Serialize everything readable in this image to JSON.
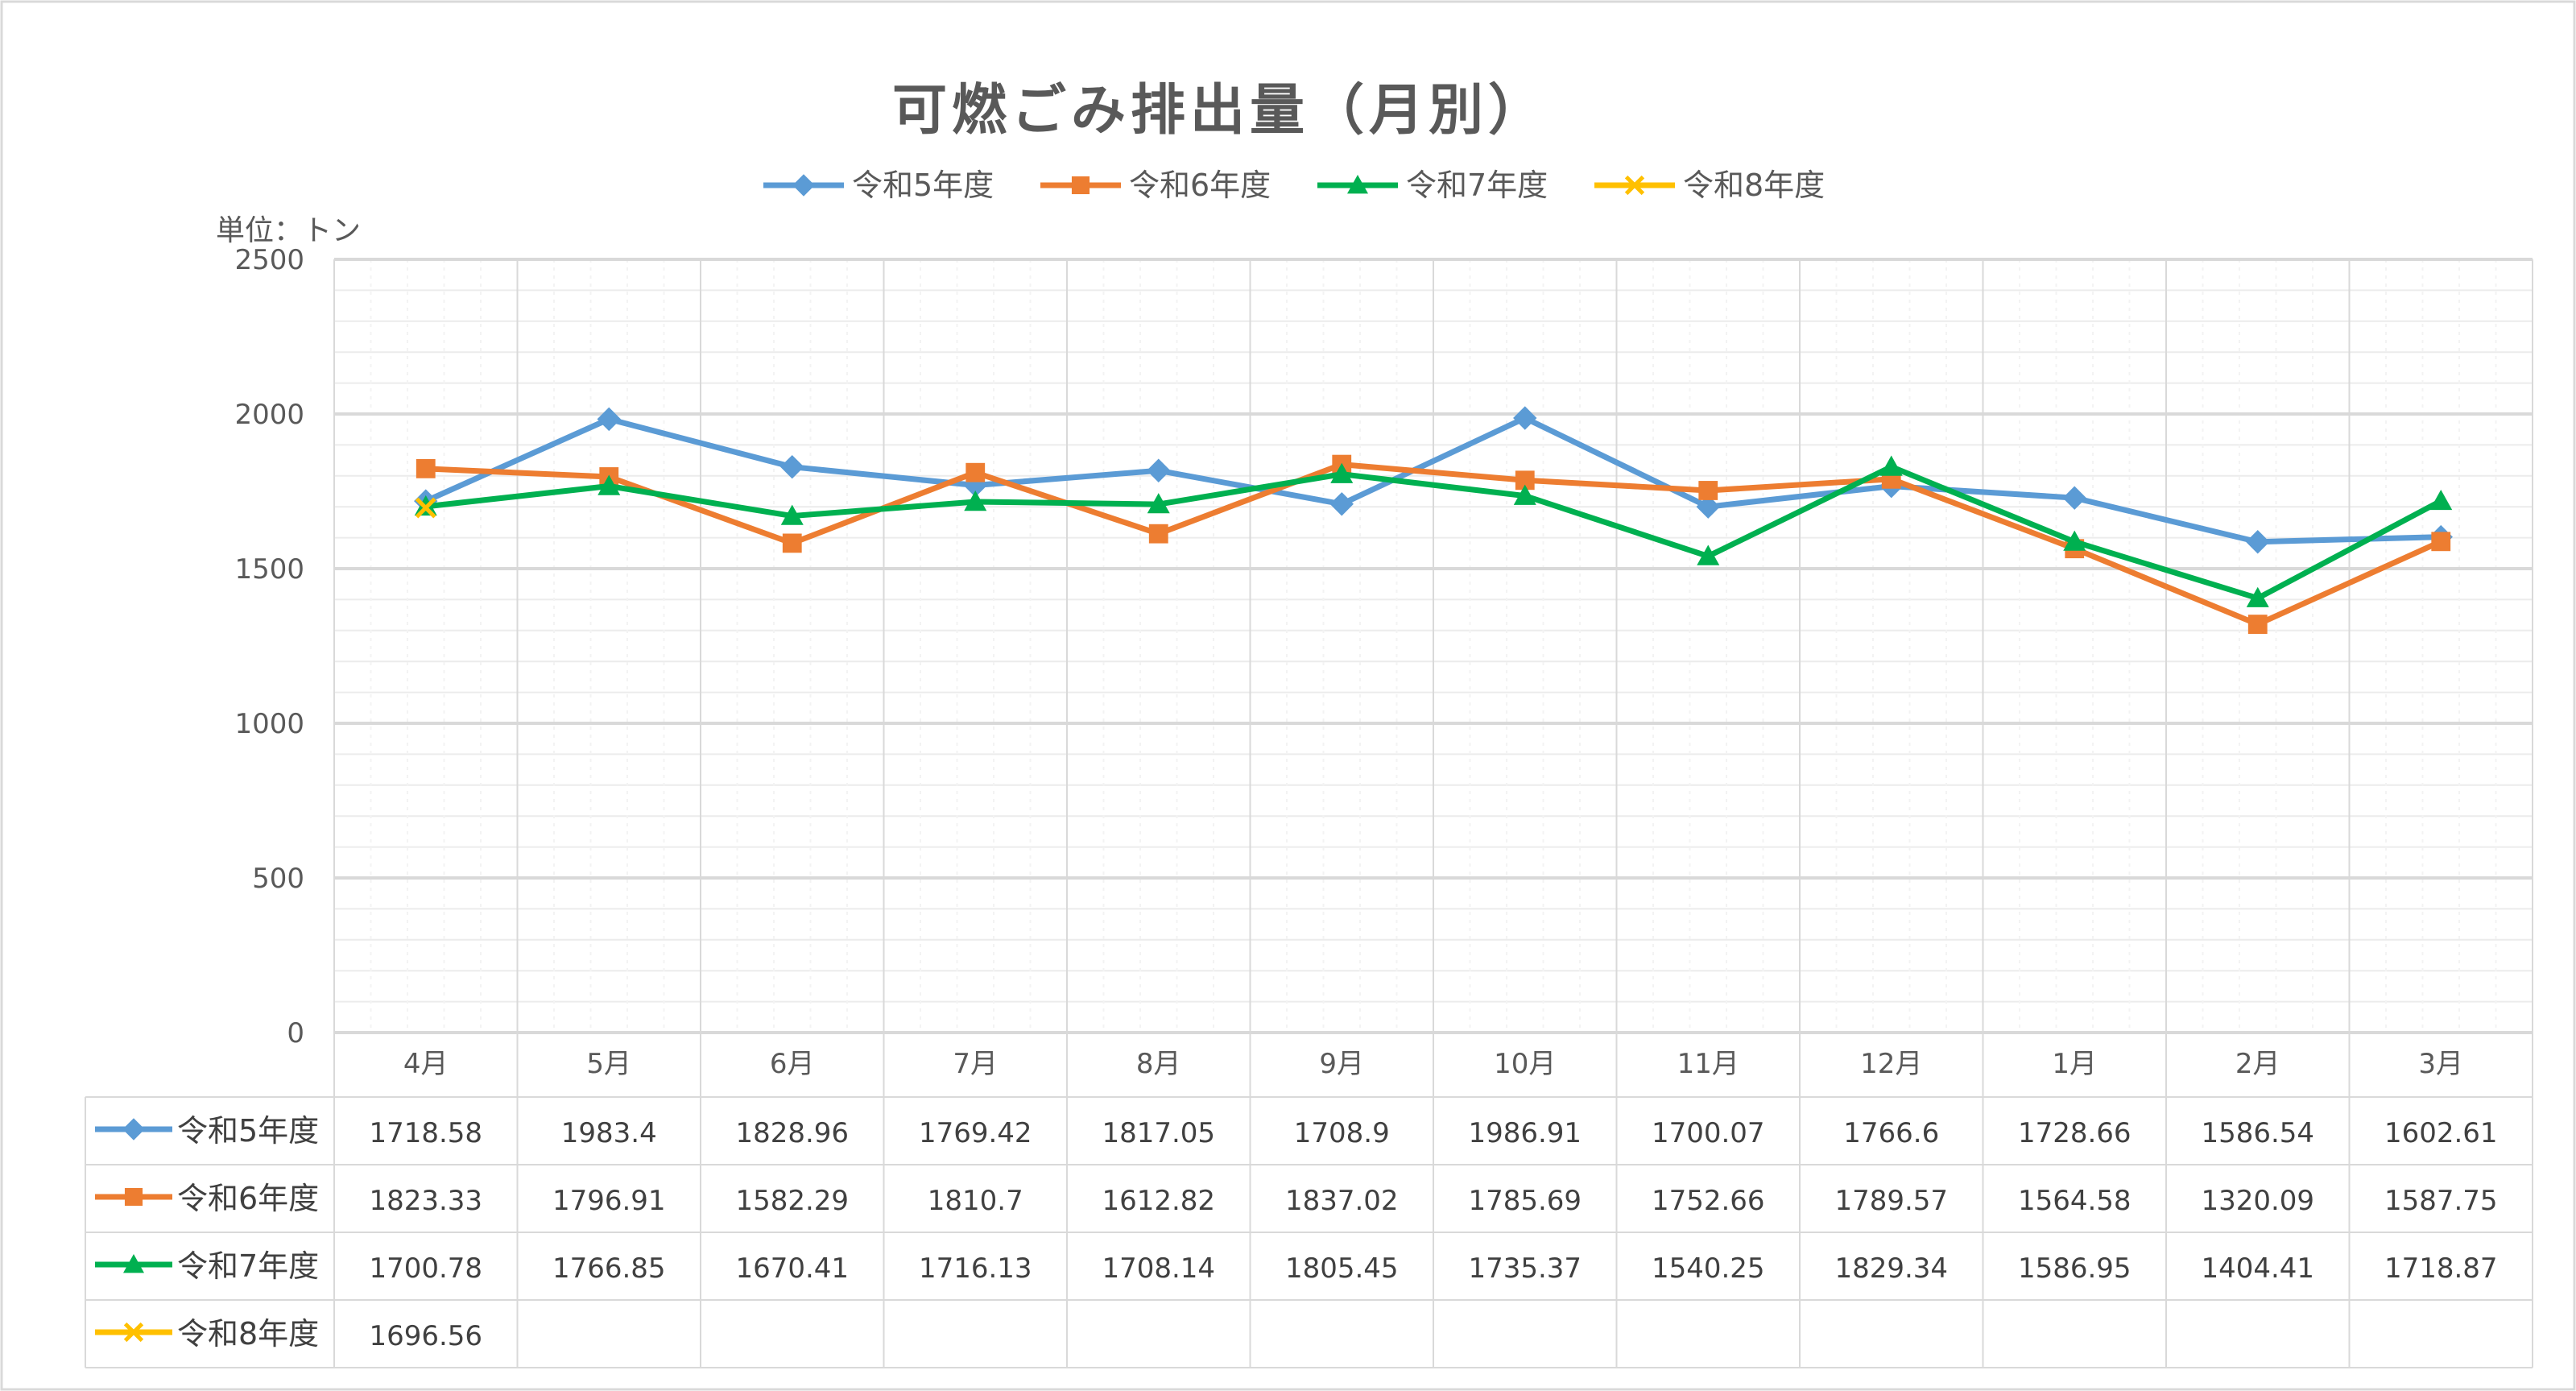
{
  "chart_data": {
    "type": "line",
    "title": "可燃ごみ排出量（月別）",
    "unit_label": "単位：トン",
    "categories": [
      "4月",
      "5月",
      "6月",
      "7月",
      "8月",
      "9月",
      "10月",
      "11月",
      "12月",
      "1月",
      "2月",
      "3月"
    ],
    "ylim": [
      0,
      2500
    ],
    "yticks": [
      "0",
      "500",
      "1000",
      "1500",
      "2000",
      "2500"
    ],
    "ytick_values": [
      0,
      500,
      1000,
      1500,
      2000,
      2500
    ],
    "grid": true,
    "legend_position": "top",
    "series": [
      {
        "name": "令和5年度",
        "color": "#5B9BD5",
        "marker": "diamond",
        "values": [
          1718.58,
          1983.4,
          1828.96,
          1769.42,
          1817.05,
          1708.9,
          1986.91,
          1700.07,
          1766.6,
          1728.66,
          1586.54,
          1602.61
        ],
        "labels": [
          "1718.58",
          "1983.4",
          "1828.96",
          "1769.42",
          "1817.05",
          "1708.9",
          "1986.91",
          "1700.07",
          "1766.6",
          "1728.66",
          "1586.54",
          "1602.61"
        ]
      },
      {
        "name": "令和6年度",
        "color": "#ED7D31",
        "marker": "square",
        "values": [
          1823.33,
          1796.91,
          1582.29,
          1810.7,
          1612.82,
          1837.02,
          1785.69,
          1752.66,
          1789.57,
          1564.58,
          1320.09,
          1587.75
        ],
        "labels": [
          "1823.33",
          "1796.91",
          "1582.29",
          "1810.7",
          "1612.82",
          "1837.02",
          "1785.69",
          "1752.66",
          "1789.57",
          "1564.58",
          "1320.09",
          "1587.75"
        ]
      },
      {
        "name": "令和7年度",
        "color": "#00B050",
        "marker": "triangle",
        "values": [
          1700.78,
          1766.85,
          1670.41,
          1716.13,
          1708.14,
          1805.45,
          1735.37,
          1540.25,
          1829.34,
          1586.95,
          1404.41,
          1718.87
        ],
        "labels": [
          "1700.78",
          "1766.85",
          "1670.41",
          "1716.13",
          "1708.14",
          "1805.45",
          "1735.37",
          "1540.25",
          "1829.34",
          "1586.95",
          "1404.41",
          "1718.87"
        ]
      },
      {
        "name": "令和8年度",
        "color": "#FFC000",
        "marker": "x",
        "values": [
          1696.56,
          null,
          null,
          null,
          null,
          null,
          null,
          null,
          null,
          null,
          null,
          null
        ],
        "labels": [
          "1696.56",
          "",
          "",
          "",
          "",
          "",
          "",
          "",
          "",
          "",
          "",
          ""
        ]
      }
    ]
  }
}
